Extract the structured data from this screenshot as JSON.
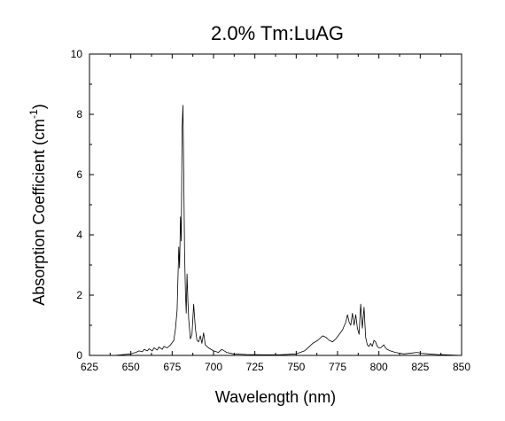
{
  "chart_data": {
    "type": "line",
    "title_main": "2.0% Tm:LuAG",
    "xlabel": "Wavelength (nm)",
    "ylabel_main": "Absorption Coefficient (cm",
    "ylabel_sup": "-1",
    "ylabel_close": ")",
    "xlim": [
      625,
      850
    ],
    "ylim": [
      0,
      10
    ],
    "x_ticks": [
      625,
      650,
      675,
      700,
      725,
      750,
      775,
      800,
      825,
      850
    ],
    "x_tick_labels": [
      "625",
      "650",
      "675",
      "700",
      "725",
      "750",
      "775",
      "800",
      "825",
      "850"
    ],
    "y_ticks": [
      0,
      2,
      4,
      6,
      8,
      10
    ],
    "y_tick_labels": [
      "0",
      "2",
      "4",
      "6",
      "8",
      "10"
    ],
    "grid": false,
    "series": [
      {
        "x": [
          625,
          640,
          650,
          653,
          655,
          657,
          658,
          660,
          661,
          663,
          664,
          666,
          667,
          669,
          670,
          672,
          674,
          676,
          677,
          678,
          679,
          679.5,
          680,
          680.5,
          681,
          681.5,
          682,
          682.5,
          683,
          683.5,
          684,
          684.5,
          685,
          686,
          687,
          688,
          689,
          690,
          691,
          692,
          693,
          694,
          695,
          697,
          700,
          703,
          705,
          708,
          712,
          720,
          730,
          740,
          750,
          755,
          758,
          760,
          763,
          766,
          768,
          770,
          772,
          774,
          776,
          778,
          780,
          781,
          782,
          783,
          784,
          785,
          786,
          787,
          788,
          789,
          790,
          791,
          792,
          793,
          794,
          795,
          796,
          797,
          798,
          799,
          800,
          801,
          802,
          803,
          804,
          805,
          807,
          810,
          815,
          820,
          823,
          826,
          830,
          835,
          840,
          845,
          850
        ],
        "y": [
          0.0,
          0.0,
          0.05,
          0.1,
          0.15,
          0.12,
          0.2,
          0.15,
          0.22,
          0.15,
          0.25,
          0.18,
          0.28,
          0.2,
          0.3,
          0.25,
          0.35,
          0.5,
          0.9,
          1.5,
          3.6,
          2.9,
          4.6,
          3.8,
          7.5,
          8.3,
          6.0,
          3.5,
          2.1,
          1.4,
          2.7,
          1.8,
          1.2,
          0.55,
          0.7,
          1.7,
          0.9,
          0.5,
          0.45,
          0.65,
          0.4,
          0.75,
          0.35,
          0.25,
          0.15,
          0.1,
          0.2,
          0.1,
          0.05,
          0.03,
          0.02,
          0.02,
          0.05,
          0.15,
          0.3,
          0.4,
          0.5,
          0.65,
          0.6,
          0.5,
          0.45,
          0.55,
          0.7,
          0.85,
          1.1,
          1.35,
          1.1,
          1.0,
          1.4,
          1.0,
          1.35,
          0.9,
          0.7,
          1.7,
          0.9,
          1.6,
          0.6,
          0.35,
          0.3,
          0.4,
          0.3,
          0.5,
          0.45,
          0.3,
          0.25,
          0.25,
          0.3,
          0.35,
          0.25,
          0.2,
          0.15,
          0.1,
          0.05,
          0.08,
          0.1,
          0.07,
          0.05,
          0.03,
          0.02,
          0.01,
          0.0
        ]
      }
    ]
  }
}
